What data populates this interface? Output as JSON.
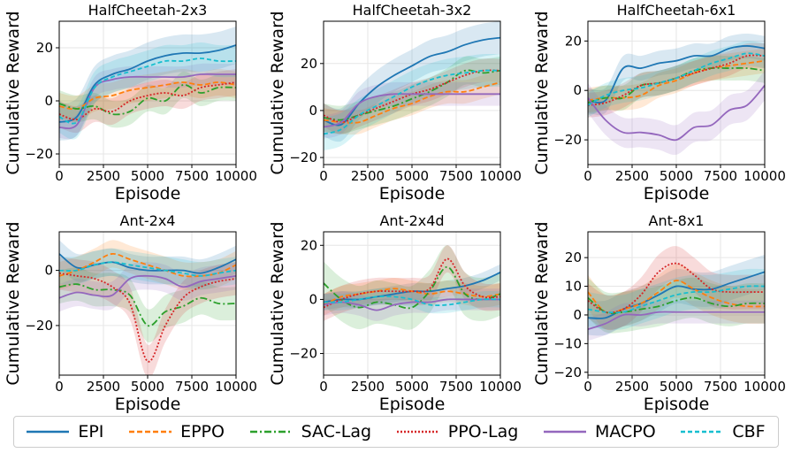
{
  "chart_data": {
    "type": "line",
    "series_styles": [
      {
        "name": "EPI",
        "color": "#1f77b4",
        "dash": "none"
      },
      {
        "name": "EPPO",
        "color": "#ff7f0e",
        "dash": "6,3"
      },
      {
        "name": "SAC-Lag",
        "color": "#2ca02c",
        "dash": "8,3,2,3"
      },
      {
        "name": "PPO-Lag",
        "color": "#d62728",
        "dash": "2,2"
      },
      {
        "name": "MACPO",
        "color": "#9467bd",
        "dash": "none"
      },
      {
        "name": "CBF",
        "color": "#17becf",
        "dash": "5,3"
      }
    ],
    "panels": [
      {
        "title": "HalfCheetah-2x3",
        "xlabel": "Episode",
        "ylabel": "Cumulative Reward",
        "xlim": [
          0,
          10000
        ],
        "ylim": [
          -24,
          30
        ],
        "xticks": [
          "0",
          "2500",
          "5000",
          "7500",
          "10000"
        ],
        "xtick_values": [
          0,
          2500,
          5000,
          7500,
          10000
        ],
        "yticks": [
          "−20",
          "0",
          "20"
        ],
        "ytick_values": [
          -20,
          0,
          20
        ],
        "x": [
          0,
          1000,
          2000,
          3000,
          4000,
          5000,
          6000,
          7000,
          8000,
          9000,
          10000
        ],
        "series": [
          {
            "name": "EPI",
            "values": [
              -8,
              -6,
              6,
              10,
              12,
              15,
              17,
              18,
              18,
              19,
              21
            ],
            "band": 7
          },
          {
            "name": "EPPO",
            "values": [
              -2,
              -3,
              1,
              2,
              4,
              5,
              6,
              7,
              6,
              7,
              6
            ],
            "band": 5
          },
          {
            "name": "SAC-Lag",
            "values": [
              -1,
              -3,
              -2,
              -5,
              -4,
              1,
              0,
              6,
              3,
              5,
              5
            ],
            "band": 5
          },
          {
            "name": "PPO-Lag",
            "values": [
              -5,
              -7,
              -3,
              -4,
              0,
              2,
              3,
              2,
              5,
              6,
              7
            ],
            "band": 5
          },
          {
            "name": "MACPO",
            "values": [
              -10,
              -9,
              5,
              8,
              9,
              9,
              9,
              9,
              10,
              10,
              10
            ],
            "band": 4
          },
          {
            "name": "CBF",
            "values": [
              -6,
              -8,
              5,
              9,
              11,
              13,
              15,
              15,
              16,
              15,
              15
            ],
            "band": 6
          }
        ]
      },
      {
        "title": "HalfCheetah-3x2",
        "xlabel": "Episode",
        "ylabel": "Cumulative Reward",
        "xlim": [
          0,
          10000
        ],
        "ylim": [
          -23,
          38
        ],
        "xticks": [
          "0",
          "2500",
          "5000",
          "7500",
          "10000"
        ],
        "xtick_values": [
          0,
          2500,
          5000,
          7500,
          10000
        ],
        "yticks": [
          "−20",
          "0",
          "20"
        ],
        "ytick_values": [
          -20,
          0,
          20
        ],
        "x": [
          0,
          1000,
          2000,
          3000,
          4000,
          5000,
          6000,
          7000,
          8000,
          9000,
          10000
        ],
        "series": [
          {
            "name": "EPI",
            "values": [
              -4,
              -6,
              3,
              10,
              15,
              19,
              23,
              25,
              28,
              30,
              31
            ],
            "band": 7
          },
          {
            "name": "EPPO",
            "values": [
              -4,
              -5,
              -5,
              -2,
              1,
              3,
              6,
              8,
              8,
              10,
              12
            ],
            "band": 5
          },
          {
            "name": "SAC-Lag",
            "values": [
              -3,
              -4,
              -2,
              0,
              2,
              5,
              8,
              12,
              17,
              16,
              17
            ],
            "band": 6
          },
          {
            "name": "PPO-Lag",
            "values": [
              -2,
              -5,
              -2,
              1,
              4,
              7,
              9,
              12,
              15,
              17,
              17
            ],
            "band": 5
          },
          {
            "name": "MACPO",
            "values": [
              -7,
              -5,
              3,
              6,
              7,
              7,
              7,
              7,
              7,
              7,
              7
            ],
            "band": 5
          },
          {
            "name": "CBF",
            "values": [
              -10,
              -8,
              -2,
              2,
              6,
              10,
              13,
              15,
              16,
              17,
              17
            ],
            "band": 7
          }
        ]
      },
      {
        "title": "HalfCheetah-6x1",
        "xlabel": "Episode",
        "ylabel": "Cumulative Reward",
        "xlim": [
          0,
          10000
        ],
        "ylim": [
          -30,
          28
        ],
        "xticks": [
          "0",
          "2500",
          "5000",
          "7500",
          "10000"
        ],
        "xtick_values": [
          0,
          2500,
          5000,
          7500,
          10000
        ],
        "yticks": [
          "−20",
          "0",
          "20"
        ],
        "ytick_values": [
          -20,
          0,
          20
        ],
        "x": [
          0,
          1000,
          2000,
          3000,
          4000,
          5000,
          6000,
          7000,
          8000,
          9000,
          10000
        ],
        "series": [
          {
            "name": "EPI",
            "values": [
              -4,
              -4,
              9,
              9,
              11,
              12,
              14,
              14,
              17,
              18,
              17
            ],
            "band": 5
          },
          {
            "name": "EPPO",
            "values": [
              -4,
              -3,
              -3,
              -2,
              2,
              4,
              7,
              9,
              10,
              11,
              12
            ],
            "band": 5
          },
          {
            "name": "SAC-Lag",
            "values": [
              -5,
              -3,
              -3,
              2,
              3,
              5,
              8,
              9,
              9,
              9,
              8
            ],
            "band": 5
          },
          {
            "name": "PPO-Lag",
            "values": [
              -6,
              -5,
              -2,
              2,
              3,
              5,
              7,
              9,
              11,
              14,
              14
            ],
            "band": 5
          },
          {
            "name": "MACPO",
            "values": [
              -3,
              -12,
              -17,
              -17,
              -18,
              -20,
              -15,
              -14,
              -8,
              -6,
              2
            ],
            "band": 6
          },
          {
            "name": "CBF",
            "values": [
              -6,
              -2,
              0,
              1,
              3,
              5,
              8,
              11,
              13,
              15,
              14
            ],
            "band": 5
          }
        ]
      },
      {
        "title": "Ant-2x4",
        "xlabel": "Episode",
        "ylabel": "Cumulative Reward",
        "xlim": [
          0,
          10000
        ],
        "ylim": [
          -38,
          14
        ],
        "xticks": [
          "0",
          "2500",
          "5000",
          "7500",
          "10000"
        ],
        "xtick_values": [
          0,
          2500,
          5000,
          7500,
          10000
        ],
        "yticks": [
          "−20",
          "0"
        ],
        "ytick_values": [
          -20,
          0
        ],
        "x": [
          0,
          1000,
          2000,
          3000,
          4000,
          5000,
          6000,
          7000,
          8000,
          9000,
          10000
        ],
        "series": [
          {
            "name": "EPI",
            "values": [
              6,
              1,
              2,
              3,
              1,
              0,
              0,
              0,
              -1,
              1,
              4
            ],
            "band": 5
          },
          {
            "name": "EPPO",
            "values": [
              -2,
              0,
              3,
              6,
              4,
              2,
              0,
              -2,
              -2,
              -1,
              2
            ],
            "band": 5
          },
          {
            "name": "SAC-Lag",
            "values": [
              -6,
              -5,
              -7,
              -7,
              -9,
              -20,
              -15,
              -13,
              -10,
              -12,
              -12
            ],
            "band": 6
          },
          {
            "name": "PPO-Lag",
            "values": [
              -1,
              -2,
              -3,
              -6,
              -12,
              -33,
              -20,
              -10,
              -6,
              -4,
              -3
            ],
            "band": 6
          },
          {
            "name": "MACPO",
            "values": [
              -10,
              -8,
              -9,
              -9,
              -3,
              -2,
              -3,
              -6,
              -4,
              -3,
              -2
            ],
            "band": 5
          },
          {
            "name": "CBF",
            "values": [
              0,
              0,
              2,
              3,
              2,
              1,
              0,
              -1,
              -2,
              -1,
              0
            ],
            "band": 5
          }
        ]
      },
      {
        "title": "Ant-2x4d",
        "xlabel": "Episode",
        "ylabel": "Cumulative Reward",
        "xlim": [
          0,
          10000
        ],
        "ylim": [
          -28,
          25
        ],
        "xticks": [
          "0",
          "2500",
          "5000",
          "7500",
          "10000"
        ],
        "xtick_values": [
          0,
          2500,
          5000,
          7500,
          10000
        ],
        "yticks": [
          "−20",
          "0",
          "20"
        ],
        "ytick_values": [
          -20,
          0,
          20
        ],
        "x": [
          0,
          1000,
          2000,
          3000,
          4000,
          5000,
          6000,
          7000,
          8000,
          9000,
          10000
        ],
        "series": [
          {
            "name": "EPI",
            "values": [
              -1,
              0,
              0,
              1,
              2,
              3,
              3,
              4,
              5,
              7,
              10
            ],
            "band": 3
          },
          {
            "name": "EPPO",
            "values": [
              -2,
              1,
              2,
              3,
              4,
              3,
              2,
              3,
              2,
              1,
              2
            ],
            "band": 4
          },
          {
            "name": "SAC-Lag",
            "values": [
              6,
              0,
              -3,
              -1,
              -2,
              -3,
              3,
              12,
              2,
              0,
              2
            ],
            "band": 8
          },
          {
            "name": "PPO-Lag",
            "values": [
              -3,
              0,
              2,
              3,
              3,
              3,
              4,
              15,
              5,
              1,
              1
            ],
            "band": 5
          },
          {
            "name": "MACPO",
            "values": [
              -2,
              -1,
              -2,
              -4,
              -2,
              -1,
              -1,
              0,
              0,
              0,
              0
            ],
            "band": 4
          },
          {
            "name": "CBF",
            "values": [
              -1,
              -1,
              0,
              1,
              1,
              0,
              -2,
              -2,
              -1,
              0,
              0
            ],
            "band": 3
          }
        ]
      },
      {
        "title": "Ant-8x1",
        "xlabel": "Episode",
        "ylabel": "Cumulative Reward",
        "xlim": [
          0,
          10000
        ],
        "ylim": [
          -21,
          29
        ],
        "xticks": [
          "0",
          "2500",
          "5000",
          "7500",
          "10000"
        ],
        "xtick_values": [
          0,
          2500,
          5000,
          7500,
          10000
        ],
        "yticks": [
          "−20",
          "−10",
          "0",
          "10",
          "20"
        ],
        "ytick_values": [
          -20,
          -10,
          0,
          10,
          20
        ],
        "x": [
          0,
          1000,
          2000,
          3000,
          4000,
          5000,
          6000,
          7000,
          8000,
          9000,
          10000
        ],
        "series": [
          {
            "name": "EPI",
            "values": [
              -1,
              -1,
              2,
              4,
              7,
              10,
              9,
              9,
              11,
              13,
              15
            ],
            "band": 6
          },
          {
            "name": "EPPO",
            "values": [
              8,
              1,
              2,
              4,
              8,
              12,
              9,
              6,
              4,
              3,
              3
            ],
            "band": 6
          },
          {
            "name": "SAC-Lag",
            "values": [
              6,
              1,
              1,
              2,
              3,
              5,
              6,
              4,
              3,
              4,
              4
            ],
            "band": 7
          },
          {
            "name": "PPO-Lag",
            "values": [
              5,
              1,
              2,
              7,
              15,
              18,
              14,
              9,
              8,
              8,
              8
            ],
            "band": 6
          },
          {
            "name": "MACPO",
            "values": [
              -5,
              -3,
              0,
              0,
              1,
              1,
              1,
              1,
              1,
              1,
              1
            ],
            "band": 4
          },
          {
            "name": "CBF",
            "values": [
              2,
              1,
              1,
              3,
              5,
              7,
              8,
              8,
              9,
              10,
              10
            ],
            "band": 6
          }
        ]
      }
    ]
  }
}
